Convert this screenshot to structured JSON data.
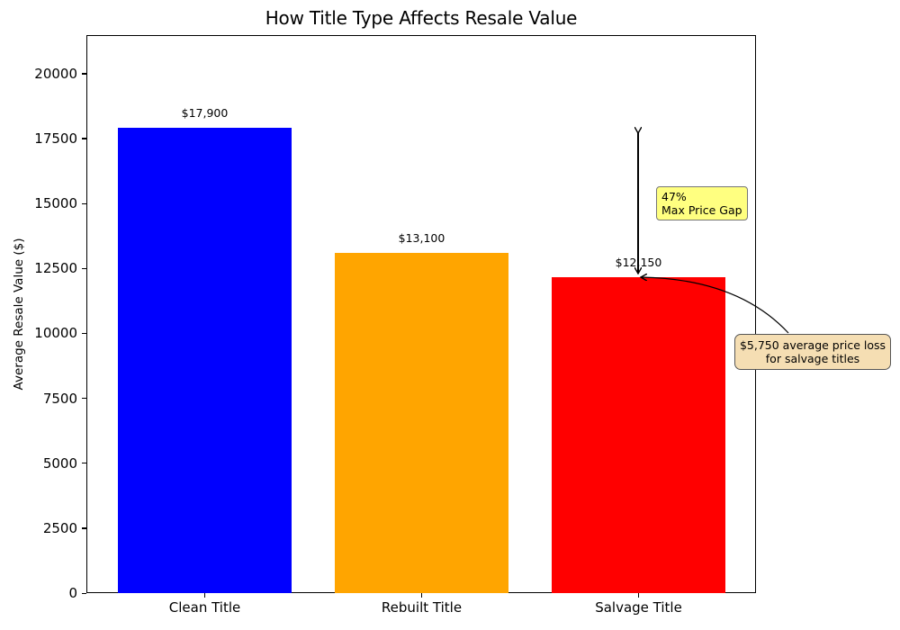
{
  "chart_data": {
    "type": "bar",
    "title": "How Title Type Affects Resale Value",
    "xlabel": "",
    "ylabel": "Average Resale Value ($)",
    "categories": [
      "Clean Title",
      "Rebuilt Title",
      "Salvage Title"
    ],
    "values": [
      17900,
      13100,
      12150
    ],
    "value_labels": [
      "$17,900",
      "$13,100",
      "$12,150"
    ],
    "colors": [
      "#0000ff",
      "#ffa500",
      "#ff0000"
    ],
    "ylim": [
      0,
      21480
    ],
    "yticks": [
      0,
      2500,
      5000,
      7500,
      10000,
      12500,
      15000,
      17500,
      20000
    ],
    "grid": false,
    "legend": null,
    "annotations": [
      {
        "type": "double-arrow",
        "from_value": 17900,
        "to_value": 12150,
        "category": "Salvage Title",
        "label_line1": "47%",
        "label_line2": "Max Price Gap",
        "box_color": "#ffff80"
      },
      {
        "type": "curved-arrow",
        "target": "Salvage Title top",
        "label_line1": "$5,750 average price loss",
        "label_line2": "for salvage titles",
        "box_color": "#f5deb3"
      }
    ]
  }
}
